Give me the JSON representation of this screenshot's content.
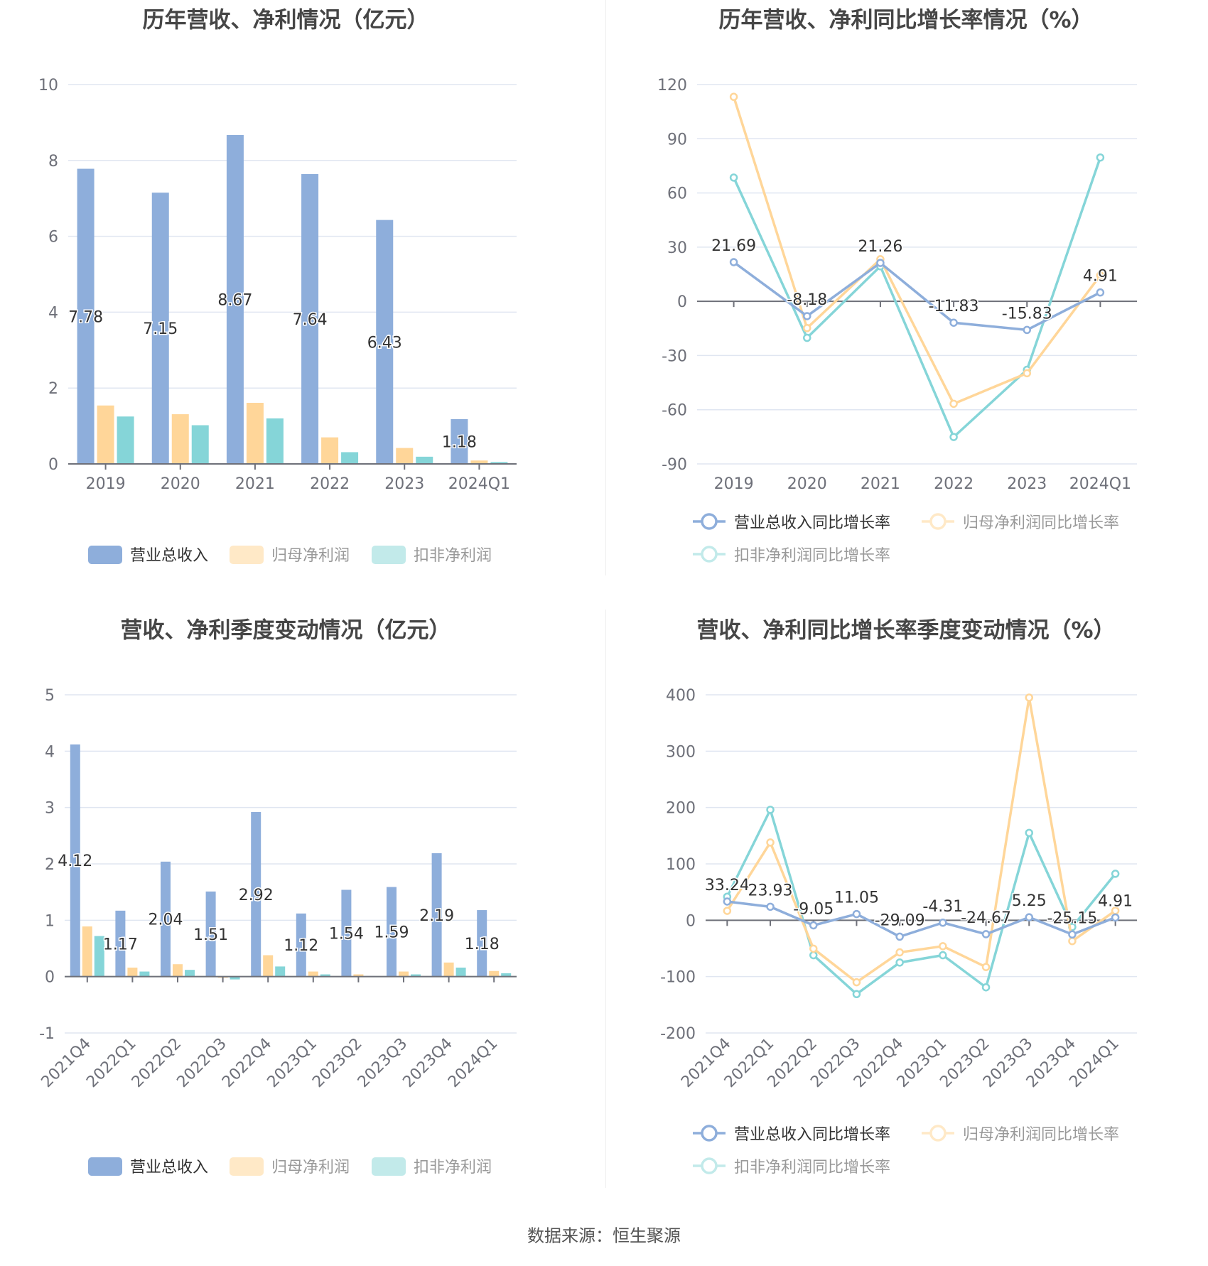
{
  "source": "数据来源：恒生聚源",
  "chart_data": [
    {
      "type": "bar",
      "title": "历年营收、净利情况（亿元）",
      "categories": [
        "2019",
        "2020",
        "2021",
        "2022",
        "2023",
        "2024Q1"
      ],
      "ylim": [
        0,
        10
      ],
      "yticks": [
        "0",
        "2",
        "4",
        "6",
        "8",
        "10"
      ],
      "grid": true,
      "legend": "bottom",
      "series": [
        {
          "name": "营业总收入",
          "color": "#8eaedb",
          "values": [
            7.78,
            7.15,
            8.67,
            7.64,
            6.43,
            1.18
          ],
          "labels": [
            "7.78",
            "7.15",
            "8.67",
            "7.64",
            "6.43",
            "1.18"
          ]
        },
        {
          "name": "归母净利润",
          "color": "#ffd699",
          "values": [
            1.54,
            1.31,
            1.61,
            0.7,
            0.42,
            0.09
          ]
        },
        {
          "name": "扣非净利润",
          "color": "#85d5d8",
          "values": [
            1.25,
            1.02,
            1.2,
            0.31,
            0.19,
            0.05
          ]
        }
      ]
    },
    {
      "type": "line",
      "title": "历年营收、净利同比增长率情况（%）",
      "categories": [
        "2019",
        "2020",
        "2021",
        "2022",
        "2023",
        "2024Q1"
      ],
      "ylim": [
        -90,
        120
      ],
      "yticks": [
        "-90",
        "-60",
        "-30",
        "0",
        "30",
        "60",
        "90",
        "120"
      ],
      "grid": true,
      "legend": "bottom",
      "series": [
        {
          "name": "营业总收入同比增长率",
          "color": "#8eaedb",
          "values": [
            21.69,
            -8.18,
            21.26,
            -11.83,
            -15.83,
            4.91
          ],
          "labels": [
            "21.69",
            "-8.18",
            "21.26",
            "-11.83",
            "-15.83",
            "4.91"
          ]
        },
        {
          "name": "归母净利润同比增长率",
          "color": "#ffd699",
          "values": [
            113.2,
            -14.8,
            23.3,
            -56.7,
            -39.8,
            14.4
          ]
        },
        {
          "name": "扣非净利润同比增长率",
          "color": "#85d5d8",
          "values": [
            68.5,
            -20.2,
            19.4,
            -75.1,
            -37.9,
            79.6
          ]
        }
      ]
    },
    {
      "type": "bar",
      "title": "营收、净利季度变动情况（亿元）",
      "categories": [
        "2021Q4",
        "2022Q1",
        "2022Q2",
        "2022Q3",
        "2022Q4",
        "2023Q1",
        "2023Q2",
        "2023Q3",
        "2023Q4",
        "2024Q1"
      ],
      "ylim": [
        -1,
        5
      ],
      "yticks": [
        "-1",
        "0",
        "1",
        "2",
        "3",
        "4",
        "5"
      ],
      "grid": true,
      "legend": "bottom",
      "series": [
        {
          "name": "营业总收入",
          "color": "#8eaedb",
          "values": [
            4.12,
            1.17,
            2.04,
            1.51,
            2.92,
            1.12,
            1.54,
            1.59,
            2.19,
            1.18
          ],
          "labels": [
            "4.12",
            "1.17",
            "2.04",
            "1.51",
            "2.92",
            "1.12",
            "1.54",
            "1.59",
            "2.19",
            "1.18"
          ]
        },
        {
          "name": "归母净利润",
          "color": "#ffd699",
          "values": [
            0.89,
            0.16,
            0.22,
            -0.02,
            0.38,
            0.09,
            0.04,
            0.09,
            0.25,
            0.1
          ]
        },
        {
          "name": "扣非净利润",
          "color": "#85d5d8",
          "values": [
            0.72,
            0.09,
            0.12,
            -0.05,
            0.18,
            0.04,
            0.01,
            0.04,
            0.16,
            0.06
          ]
        }
      ]
    },
    {
      "type": "line",
      "title": "营收、净利同比增长率季度变动情况（%）",
      "categories": [
        "2021Q4",
        "2022Q1",
        "2022Q2",
        "2022Q3",
        "2022Q4",
        "2023Q1",
        "2023Q2",
        "2023Q3",
        "2023Q4",
        "2024Q1"
      ],
      "ylim": [
        -200,
        400
      ],
      "yticks": [
        "-200",
        "-100",
        "0",
        "100",
        "200",
        "300",
        "400"
      ],
      "grid": true,
      "legend": "bottom",
      "series": [
        {
          "name": "营业总收入同比增长率",
          "color": "#8eaedb",
          "values": [
            33.24,
            23.93,
            -9.05,
            11.05,
            -29.09,
            -4.31,
            -24.67,
            5.25,
            -25.15,
            4.91
          ],
          "labels": [
            "33.24",
            "23.93",
            "-9.05",
            "11.05",
            "-29.09",
            "-4.31",
            "-24.67",
            "5.25",
            "-25.15",
            "4.91"
          ]
        },
        {
          "name": "归母净利润同比增长率",
          "color": "#ffd699",
          "values": [
            16.7,
            138,
            -50.4,
            -110,
            -57,
            -46,
            -83,
            395,
            -37,
            17
          ]
        },
        {
          "name": "扣非净利润同比增长率",
          "color": "#85d5d8",
          "values": [
            41.7,
            196,
            -62,
            -131,
            -75,
            -62,
            -119,
            155,
            -12,
            82.5
          ]
        }
      ]
    }
  ]
}
